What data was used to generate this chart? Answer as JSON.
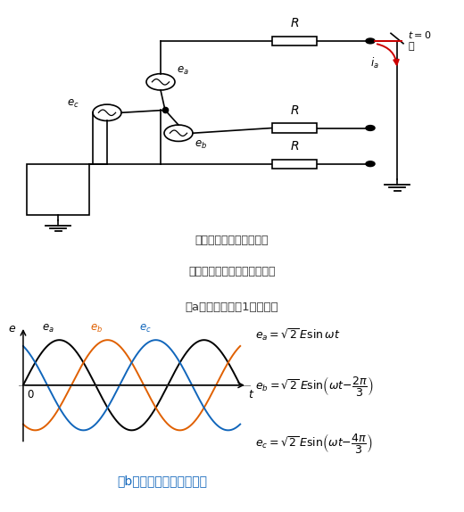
{
  "label_a": "（a）三相回路（1線地絡）",
  "label_b": "（b）各相電圧（事故前）",
  "note_line1": "注：正相インピーダンス",
  "note_line2": "＝零相インピーダンスとする",
  "color_ea": "#000000",
  "color_eb": "#E06000",
  "color_ec": "#1166BB",
  "color_label_b": "#1166BB",
  "color_red": "#CC0000",
  "bg_color": "#FFFFFF",
  "lw_circuit": 1.2
}
